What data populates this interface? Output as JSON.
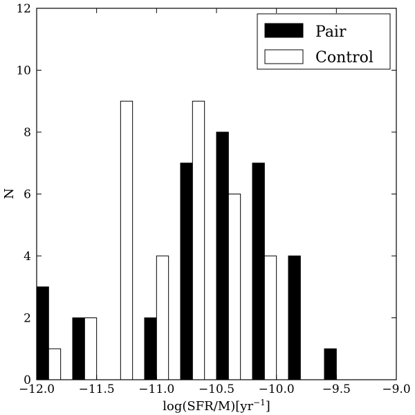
{
  "chart_data": {
    "type": "bar",
    "xlabel": "log(SFR/M)[yr",
    "xlabel_sup": "−1",
    "xlabel_close": "]",
    "ylabel": "N",
    "xlim": [
      -12.0,
      -9.0
    ],
    "ylim": [
      0,
      12
    ],
    "xticks": [
      -12.0,
      -11.5,
      -11.0,
      -10.5,
      -10.0,
      -9.5,
      -9.0
    ],
    "xtick_labels": [
      "−12.0",
      "−11.5",
      "−11.0",
      "−10.5",
      "−10.0",
      "−9.5",
      "−9.0"
    ],
    "yticks": [
      0,
      2,
      4,
      6,
      8,
      10,
      12
    ],
    "ytick_labels": [
      "0",
      "2",
      "4",
      "6",
      "8",
      "10",
      "12"
    ],
    "bin_width": 0.1,
    "bin_starts": [
      -12.0,
      -11.7,
      -11.4,
      -11.1,
      -10.8,
      -10.5,
      -10.2,
      -9.9,
      -9.6,
      -9.3
    ],
    "series": [
      {
        "name": "Pair",
        "color": "#000000",
        "values": [
          3,
          2,
          0,
          2,
          7,
          8,
          7,
          4,
          1,
          0
        ]
      },
      {
        "name": "Control",
        "color": "#ffffff",
        "values": [
          1,
          2,
          9,
          4,
          9,
          6,
          4,
          0,
          0,
          0
        ]
      }
    ],
    "legend_position": "top-right",
    "grid": false
  }
}
